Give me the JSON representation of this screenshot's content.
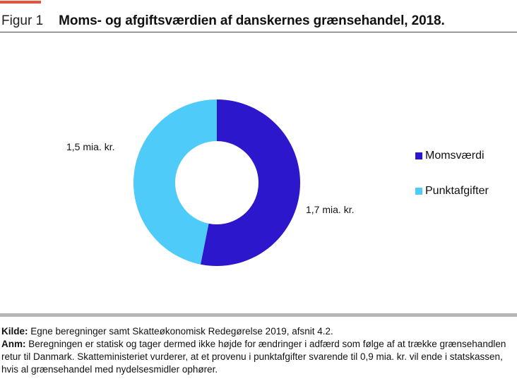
{
  "header": {
    "figure_label": "Figur 1",
    "title": "Moms- og afgiftsværdien af danskernes grænsehandel, 2018."
  },
  "colors": {
    "accent": "#e8513a",
    "moms": "#2d17cc",
    "punkt": "#4fcbfa",
    "rule": "#444444",
    "footer_rule": "#b5b5b5"
  },
  "chart_data": {
    "type": "pie",
    "variant": "donut",
    "title": "Moms- og afgiftsværdien af danskernes grænsehandel, 2018.",
    "unit": "mia. kr.",
    "slices": [
      {
        "name": "Momsværdi",
        "value": 1.7,
        "label": "1,7 mia. kr.",
        "color": "#2d17cc"
      },
      {
        "name": "Punktafgifter",
        "value": 1.5,
        "label": "1,5 mia. kr.",
        "color": "#4fcbfa"
      }
    ],
    "legend_position": "right"
  },
  "notes": {
    "source_key": "Kilde:",
    "source_text": " Egne beregninger samt Skatteøkonomisk Redegørelse 2019, afsnit 4.2.",
    "note_key": "Anm:",
    "note_text": " Beregningen er statisk og tager dermed ikke højde for ændringer i adfærd som følge af at trække grænsehandlen retur til Danmark. Skatteministeriet vurderer, at et provenu i punktafgifter svarende til 0,9 mia. kr. vil ende i statskassen, hvis al grænsehandel med nydelsesmidler ophører."
  }
}
